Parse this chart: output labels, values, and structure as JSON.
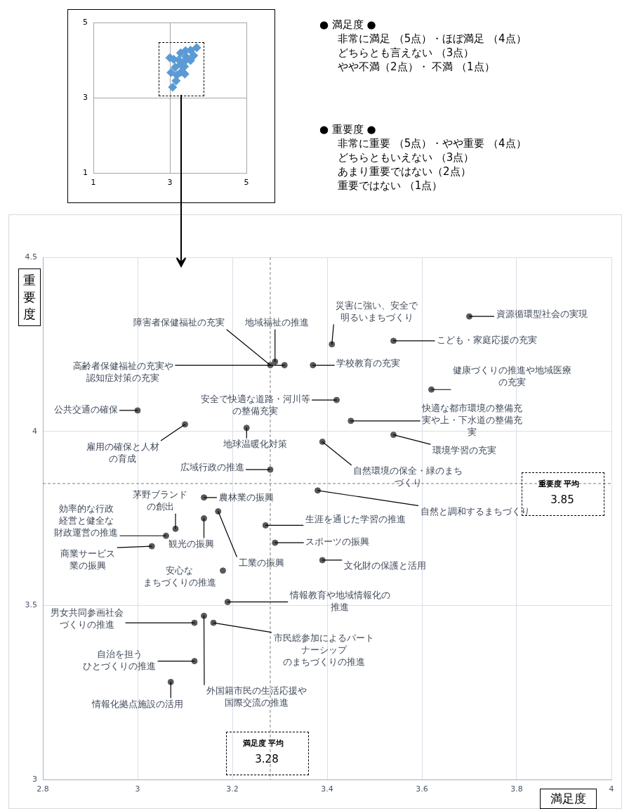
{
  "chart_data": [
    {
      "type": "scatter",
      "color": "#5b9bd5",
      "marker": "diamond",
      "xlim": [
        1,
        5
      ],
      "ylim": [
        1,
        5
      ],
      "xticks": [
        1,
        3,
        5
      ],
      "yticks": [
        1,
        3,
        5
      ],
      "grid": true,
      "x": [
        3.7,
        3.54,
        3.41,
        null,
        3.28,
        null,
        null,
        3.62,
        3.42,
        3.0,
        null,
        3.1,
        3.23,
        3.54,
        3.39,
        3.28,
        3.38,
        3.14,
        null,
        null,
        null,
        null,
        null,
        3.29,
        3.03,
        3.39,
        3.18,
        null,
        null,
        null,
        3.16,
        null,
        3.07
      ],
      "values": [
        4.33,
        4.26,
        4.25,
        null,
        4.19,
        null,
        null,
        4.12,
        4.09,
        4.06,
        null,
        4.02,
        4.01,
        3.99,
        3.97,
        3.89,
        3.83,
        3.81,
        null,
        null,
        null,
        null,
        null,
        3.68,
        3.67,
        3.63,
        3.6,
        null,
        null,
        null,
        3.45,
        null,
        3.28
      ]
    },
    {
      "type": "other",
      "title": "● 満足度 ●",
      "annotations": [
        "非常に満足 （5点）・ほぼ満足 （4点）",
        "どちらとも言えない （3点）",
        "やや不満（2点）・ 不満 （1点）"
      ]
    },
    {
      "type": "other",
      "title": "● 重要度 ●",
      "annotations": [
        "非常に重要 （5点）・やや重要 （4点）",
        "どちらともいえない （3点）",
        "あまり重要ではない（2点）",
        "重要ではない （1点）"
      ]
    },
    {
      "type": "scatter",
      "xlabel": "満足度",
      "ylabel": "重要度",
      "color": "#595959",
      "marker": "circle",
      "xlim": [
        2.8,
        4
      ],
      "ylim": [
        3,
        4.5
      ],
      "xticks": [
        2.8,
        3,
        3.2,
        3.4,
        3.6,
        3.8,
        4
      ],
      "yticks": [
        3,
        3.5,
        4,
        4.5
      ],
      "grid": true,
      "x": [
        3.7,
        3.54,
        3.41,
        3.29,
        3.28,
        3.31,
        3.37,
        3.62,
        3.42,
        3.0,
        3.45,
        3.1,
        3.23,
        3.54,
        3.39,
        3.28,
        3.38,
        3.14,
        3.17,
        3.14,
        3.27,
        3.08,
        3.06,
        3.29,
        3.03,
        3.39,
        3.18,
        3.19,
        3.14,
        3.12,
        3.16,
        3.12,
        3.07
      ],
      "values": [
        4.33,
        4.26,
        4.25,
        4.2,
        4.19,
        4.19,
        4.19,
        4.12,
        4.09,
        4.06,
        4.03,
        4.02,
        4.01,
        3.99,
        3.97,
        3.89,
        3.83,
        3.81,
        3.77,
        3.75,
        3.73,
        3.72,
        3.7,
        3.68,
        3.67,
        3.63,
        3.6,
        3.51,
        3.47,
        3.45,
        3.45,
        3.34,
        3.28
      ],
      "ref_lines": [
        {
          "axis": "x",
          "value": 3.28,
          "label": "満足度 平均 3.28",
          "line_style": "dashed"
        },
        {
          "axis": "y",
          "value": 3.85,
          "label": "重要度 平均 3.85",
          "line_style": "dashed"
        }
      ],
      "annotations": [
        {
          "text": "資源循環型社会の実現",
          "x": 3.7,
          "y": 4.33
        },
        {
          "text": "こども・家庭応援の充実",
          "x": 3.54,
          "y": 4.26
        },
        {
          "text": "災害に強い、安全で明るいまちづくり",
          "x": 3.41,
          "y": 4.25
        },
        {
          "text": "地域福祉の推進",
          "x": 3.29,
          "y": 4.2
        },
        {
          "text": "障害者保健福祉の充実",
          "x": 3.28,
          "y": 4.19
        },
        {
          "text": "高齢者保健福祉の充実や認知症対策の充実",
          "x": 3.31,
          "y": 4.19
        },
        {
          "text": "学校教育の充実",
          "x": 3.37,
          "y": 4.19
        },
        {
          "text": "健康づくりの推進や地域医療の充実",
          "x": 3.62,
          "y": 4.12
        },
        {
          "text": "安全で快適な道路・河川等の整備充実",
          "x": 3.42,
          "y": 4.09
        },
        {
          "text": "公共交通の確保",
          "x": 3.0,
          "y": 4.06
        },
        {
          "text": "快適な都市環境の整備充実や上・下水道の整備充実",
          "x": 3.45,
          "y": 4.03
        },
        {
          "text": "雇用の確保と人材の育成",
          "x": 3.1,
          "y": 4.02
        },
        {
          "text": "地球温暖化対策",
          "x": 3.23,
          "y": 4.01
        },
        {
          "text": "環境学習の充実",
          "x": 3.54,
          "y": 3.99
        },
        {
          "text": "自然環境の保全・緑のまちづくり",
          "x": 3.39,
          "y": 3.97
        },
        {
          "text": "広域行政の推進",
          "x": 3.28,
          "y": 3.89
        },
        {
          "text": "自然と調和するまちづくり",
          "x": 3.38,
          "y": 3.83
        },
        {
          "text": "農林業の振興",
          "x": 3.14,
          "y": 3.81
        },
        {
          "text": "工業の振興",
          "x": 3.17,
          "y": 3.77
        },
        {
          "text": "観光の振興",
          "x": 3.14,
          "y": 3.75
        },
        {
          "text": "生涯を通じた学習の推進",
          "x": 3.27,
          "y": 3.73
        },
        {
          "text": "茅野ブランドの創出",
          "x": 3.08,
          "y": 3.72
        },
        {
          "text": "効率的な行政経営と健全な財政運営の推進",
          "x": 3.06,
          "y": 3.7
        },
        {
          "text": "スポーツの振興",
          "x": 3.29,
          "y": 3.68
        },
        {
          "text": "商業サービス業の振興",
          "x": 3.03,
          "y": 3.67
        },
        {
          "text": "文化財の保護と活用",
          "x": 3.39,
          "y": 3.63
        },
        {
          "text": "安心なまちづくりの推進",
          "x": 3.18,
          "y": 3.6
        },
        {
          "text": "情報教育や地域情報化の推進",
          "x": 3.19,
          "y": 3.51
        },
        {
          "text": "外国籍市民の生活応援や国際交流の推進",
          "x": 3.14,
          "y": 3.47
        },
        {
          "text": "男女共同参画社会づくりの推進",
          "x": 3.12,
          "y": 3.45
        },
        {
          "text": "市民総参加によるパートナーシップのまちづくりの推進",
          "x": 3.16,
          "y": 3.45
        },
        {
          "text": "自治を担うひとづくりの推進",
          "x": 3.12,
          "y": 3.34
        },
        {
          "text": "情報化拠点施設の活用",
          "x": 3.07,
          "y": 3.28
        }
      ]
    }
  ]
}
